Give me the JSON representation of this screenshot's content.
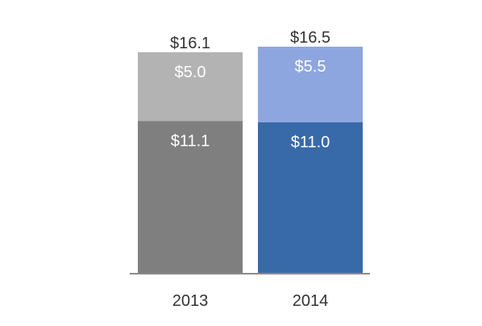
{
  "chart_data": {
    "type": "bar",
    "stacked": true,
    "categories": [
      "2013",
      "2014"
    ],
    "series": [
      {
        "values": [
          11.1,
          11.0
        ],
        "labels": [
          "$11.1",
          "$11.0"
        ],
        "colors": [
          "#7f7f7f",
          "#386aa9"
        ]
      },
      {
        "values": [
          5.0,
          5.5
        ],
        "labels": [
          "$5.0",
          "$5.5"
        ],
        "colors": [
          "#b3b3b3",
          "#8ea6df"
        ]
      }
    ],
    "totals": [
      16.1,
      16.5
    ],
    "total_labels": [
      "$16.1",
      "$16.5"
    ],
    "title": "",
    "xlabel": "",
    "ylabel": "",
    "ylim": [
      0,
      16.5
    ],
    "grid": false,
    "legend": "none",
    "colors": {
      "axis": "#8c8c8c",
      "segment_label": "#ffffff",
      "total_label": "#333333",
      "category_label": "#333333"
    }
  }
}
